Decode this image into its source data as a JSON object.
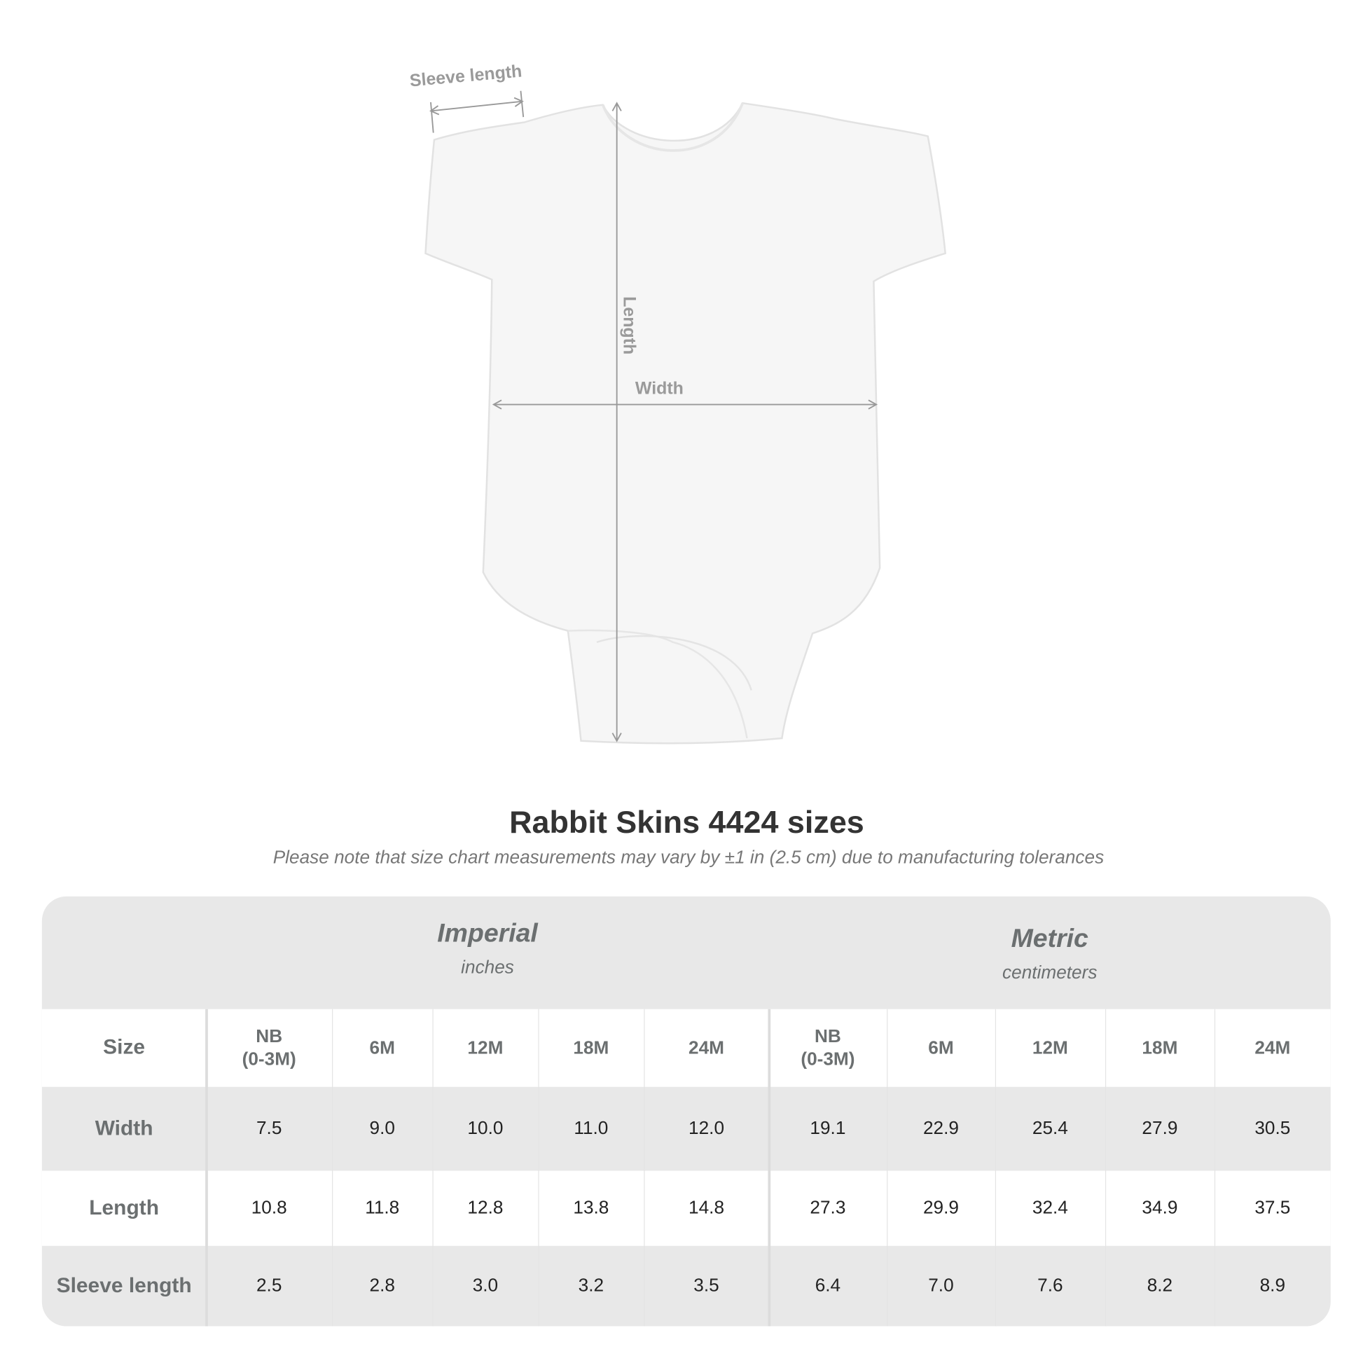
{
  "diagram": {
    "labels": {
      "sleeve_length": "Sleeve length",
      "length": "Length",
      "width": "Width"
    }
  },
  "title": "Rabbit Skins 4424 sizes",
  "note": "Please note that size chart measurements may vary by ±1 in (2.5 cm) due to manufacturing tolerances",
  "table": {
    "systems": [
      {
        "name": "Imperial",
        "unit": "inches"
      },
      {
        "name": "Metric",
        "unit": "centimeters"
      }
    ],
    "size_label": "Size",
    "sizes": [
      "NB\n(0-3M)",
      "6M",
      "12M",
      "18M",
      "24M"
    ],
    "rows": [
      {
        "label": "Width",
        "imperial": [
          "7.5",
          "9.0",
          "10.0",
          "11.0",
          "12.0"
        ],
        "metric": [
          "19.1",
          "22.9",
          "25.4",
          "27.9",
          "30.5"
        ]
      },
      {
        "label": "Length",
        "imperial": [
          "10.8",
          "11.8",
          "12.8",
          "13.8",
          "14.8"
        ],
        "metric": [
          "27.3",
          "29.9",
          "32.4",
          "34.9",
          "37.5"
        ]
      },
      {
        "label": "Sleeve length",
        "imperial": [
          "2.5",
          "2.8",
          "3.0",
          "3.2",
          "3.5"
        ],
        "metric": [
          "6.4",
          "7.0",
          "7.6",
          "8.2",
          "8.9"
        ]
      }
    ],
    "colors": {
      "header_bg": "#e8e8e8",
      "label_text": "#6b6f70"
    }
  }
}
